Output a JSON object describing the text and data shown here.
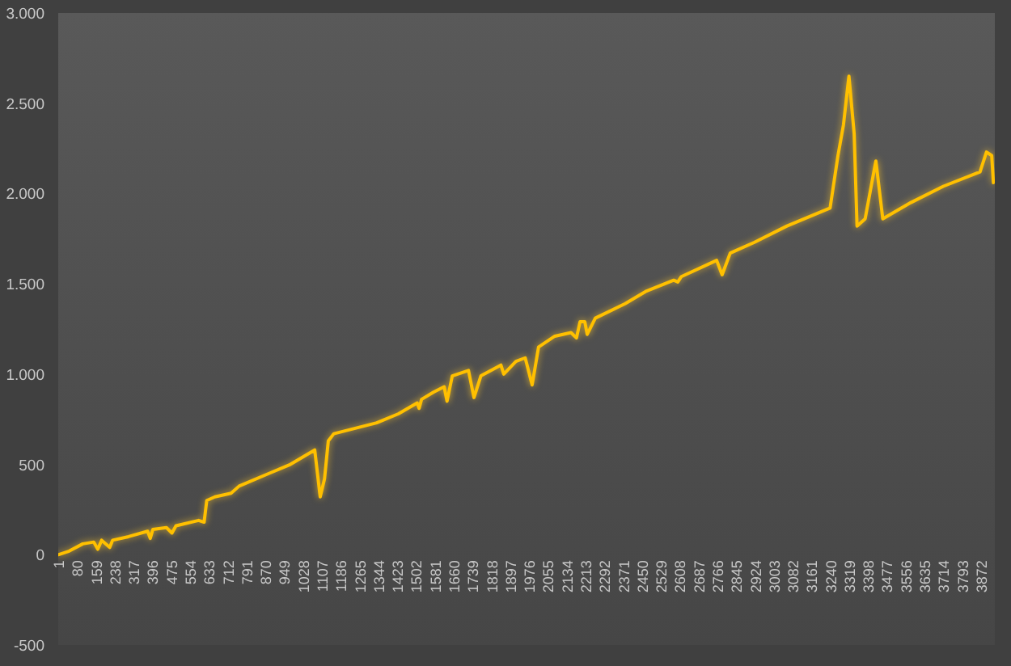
{
  "chart_data": {
    "type": "line",
    "x": [
      1,
      47,
      104,
      150,
      167,
      183,
      217,
      229,
      296,
      376,
      387,
      398,
      455,
      478,
      495,
      590,
      613,
      624,
      658,
      726,
      760,
      885,
      975,
      1077,
      1100,
      1118,
      1134,
      1157,
      1247,
      1337,
      1428,
      1507,
      1515,
      1525,
      1575,
      1620,
      1632,
      1654,
      1722,
      1745,
      1774,
      1858,
      1870,
      1921,
      1960,
      1989,
      2016,
      2084,
      2152,
      2175,
      2190,
      2210,
      2220,
      2254,
      2379,
      2469,
      2583,
      2600,
      2615,
      2763,
      2786,
      2820,
      2922,
      3058,
      3239,
      3272,
      3295,
      3318,
      3340,
      3352,
      3386,
      3431,
      3460,
      3578,
      3714,
      3868,
      3895,
      3917,
      3924
    ],
    "series": [
      {
        "color": "#ffc000",
        "values": [
          0,
          20,
          60,
          70,
          30,
          80,
          40,
          80,
          100,
          130,
          90,
          140,
          150,
          120,
          160,
          190,
          180,
          300,
          320,
          340,
          380,
          450,
          500,
          580,
          320,
          420,
          630,
          670,
          700,
          730,
          780,
          840,
          810,
          860,
          900,
          930,
          850,
          990,
          1020,
          870,
          990,
          1050,
          1000,
          1070,
          1090,
          940,
          1150,
          1210,
          1230,
          1200,
          1290,
          1290,
          1220,
          1310,
          1390,
          1460,
          1520,
          1510,
          1540,
          1630,
          1550,
          1670,
          1730,
          1820,
          1920,
          2210,
          2380,
          2650,
          2330,
          1820,
          1860,
          2180,
          1860,
          1950,
          2040,
          2120,
          2230,
          2210,
          2060
        ]
      }
    ],
    "xlim": [
      1,
      3930
    ],
    "xticks": [
      1,
      80,
      159,
      238,
      317,
      396,
      475,
      554,
      633,
      712,
      791,
      870,
      949,
      1028,
      1107,
      1186,
      1265,
      1344,
      1423,
      1502,
      1581,
      1660,
      1739,
      1818,
      1897,
      1976,
      2055,
      2134,
      2213,
      2292,
      2371,
      2450,
      2529,
      2608,
      2687,
      2766,
      2845,
      2924,
      3003,
      3082,
      3161,
      3240,
      3319,
      3398,
      3477,
      3556,
      3635,
      3714,
      3793,
      3872
    ],
    "ylim": [
      -500,
      3000
    ],
    "yticks": [
      -500,
      0,
      500,
      {
        "value": 1000,
        "label": "1.000"
      },
      {
        "value": 1500,
        "label": "1.500"
      },
      {
        "value": 2000,
        "label": "2.000"
      },
      {
        "value": 2500,
        "label": "2.500"
      },
      {
        "value": 3000,
        "label": "3.000"
      }
    ]
  }
}
